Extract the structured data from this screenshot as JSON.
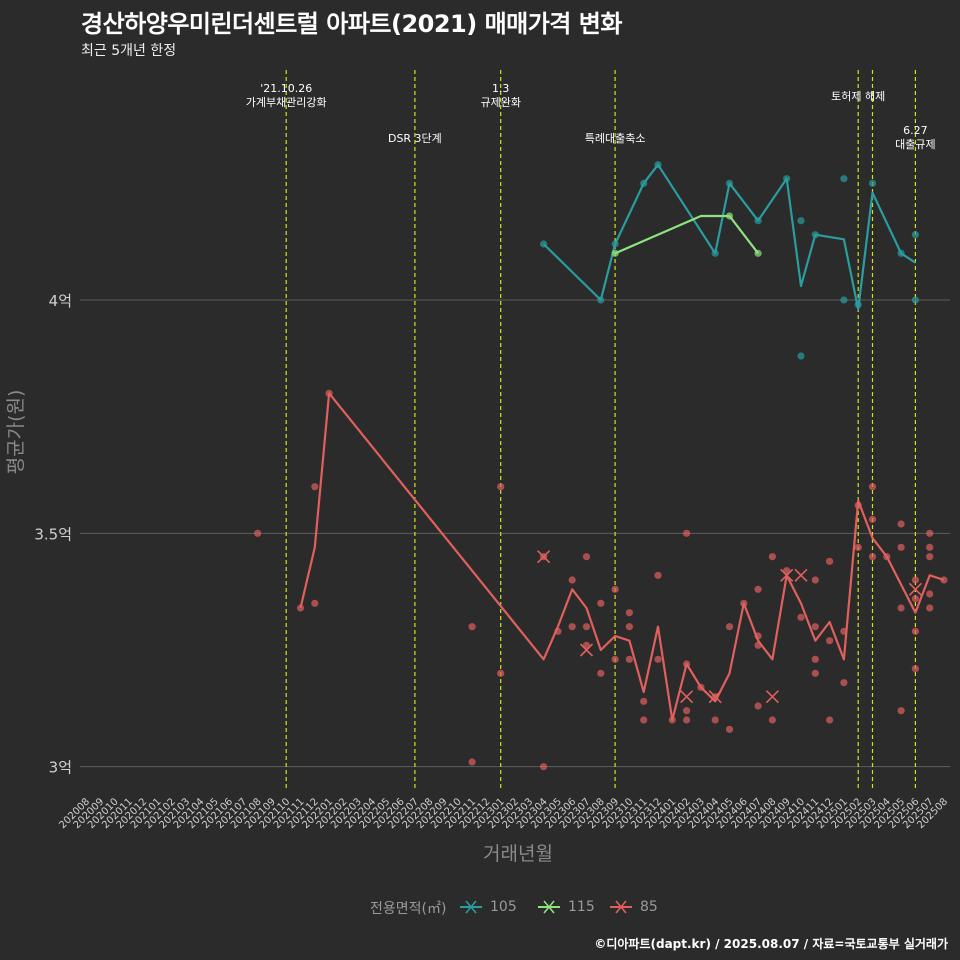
{
  "title": "경산하양우미린더센트럴 아파트(2021) 매매가격 변화",
  "subtitle": "최근 5개년 한정",
  "caption": "©디아파트(dapt.kr) / 2025.08.07 / 자료=국토교통부 실거래가",
  "colors": {
    "105": "#2a9d9f",
    "115": "#8ee37f",
    "85": "#e0605e",
    "background": "#2b2b2b",
    "grid": "#5a5a5a",
    "vline": "#d4e21a"
  },
  "chart_data": {
    "type": "line",
    "xlabel": "거래년월",
    "ylabel": "평균가(원)",
    "ylim": [
      2.95,
      4.51
    ],
    "y_ticks": [
      {
        "value": 3.0,
        "label": "3억"
      },
      {
        "value": 3.5,
        "label": "3.5억"
      },
      {
        "value": 4.0,
        "label": "4억"
      }
    ],
    "grid": true,
    "legend_position": "bottom",
    "legend_title": "전용면적(㎡)",
    "x_categories": [
      "202008",
      "202009",
      "202010",
      "202011",
      "202012",
      "202101",
      "202102",
      "202103",
      "202104",
      "202105",
      "202106",
      "202107",
      "202108",
      "202109",
      "202110",
      "202111",
      "202112",
      "202201",
      "202202",
      "202203",
      "202204",
      "202205",
      "202206",
      "202207",
      "202208",
      "202209",
      "202210",
      "202211",
      "202212",
      "202301",
      "202302",
      "202303",
      "202304",
      "202305",
      "202306",
      "202307",
      "202308",
      "202309",
      "202310",
      "202311",
      "202312",
      "202401",
      "202402",
      "202403",
      "202404",
      "202405",
      "202406",
      "202407",
      "202408",
      "202409",
      "202410",
      "202411",
      "202412",
      "202501",
      "202502",
      "202503",
      "202504",
      "202505",
      "202506",
      "202507",
      "202508"
    ],
    "events": [
      {
        "x": "202110",
        "label": "'21.10.26\n가계부채관리강화",
        "row": 0
      },
      {
        "x": "202207",
        "label": "DSR 3단계",
        "row": 2
      },
      {
        "x": "202301",
        "label": "1.3\n규제완화",
        "row": 0
      },
      {
        "x": "202309",
        "label": "특례대출축소",
        "row": 2
      },
      {
        "x": "202502",
        "label": "토허제 해제",
        "row": 1
      },
      {
        "x": "202503",
        "label": "",
        "row": 1
      },
      {
        "x": "202506",
        "label": "6.27\n대출규제",
        "row": 3
      }
    ],
    "series": [
      {
        "name": "105",
        "color": "#2a9d9f",
        "line": [
          [
            "202304",
            4.12
          ],
          [
            "202308",
            4.0
          ],
          [
            "202309",
            4.12
          ],
          [
            "202311",
            4.25
          ],
          [
            "202312",
            4.29
          ],
          [
            "202404",
            4.1
          ],
          [
            "202405",
            4.25
          ],
          [
            "202407",
            4.17
          ],
          [
            "202409",
            4.26
          ],
          [
            "202410",
            4.03
          ],
          [
            "202411",
            4.14
          ],
          [
            "202501",
            4.13
          ],
          [
            "202502",
            3.98
          ],
          [
            "202503",
            4.23
          ],
          [
            "202505",
            4.1
          ],
          [
            "202506",
            4.08
          ]
        ],
        "points": [
          [
            "202304",
            4.12
          ],
          [
            "202308",
            4.0
          ],
          [
            "202309",
            4.12
          ],
          [
            "202311",
            4.25
          ],
          [
            "202312",
            4.29
          ],
          [
            "202404",
            4.1
          ],
          [
            "202405",
            4.25
          ],
          [
            "202407",
            4.17
          ],
          [
            "202409",
            4.26
          ],
          [
            "202410",
            4.17
          ],
          [
            "202410",
            3.88
          ],
          [
            "202411",
            4.14
          ],
          [
            "202501",
            4.26
          ],
          [
            "202501",
            4.0
          ],
          [
            "202502",
            3.99
          ],
          [
            "202503",
            4.25
          ],
          [
            "202505",
            4.1
          ],
          [
            "202506",
            4.14
          ],
          [
            "202506",
            4.0
          ]
        ],
        "crosses": []
      },
      {
        "name": "115",
        "color": "#8ee37f",
        "line": [
          [
            "202309",
            4.1
          ],
          [
            "202403",
            4.18
          ],
          [
            "202405",
            4.18
          ],
          [
            "202407",
            4.1
          ]
        ],
        "points": [
          [
            "202309",
            4.1
          ],
          [
            "202405",
            4.18
          ],
          [
            "202407",
            4.1
          ]
        ],
        "crosses": []
      },
      {
        "name": "85",
        "color": "#e0605e",
        "line": [
          [
            "202111",
            3.34
          ],
          [
            "202112",
            3.47
          ],
          [
            "202201",
            3.8
          ],
          [
            "202304",
            3.23
          ],
          [
            "202305",
            3.3
          ],
          [
            "202306",
            3.38
          ],
          [
            "202307",
            3.34
          ],
          [
            "202308",
            3.25
          ],
          [
            "202309",
            3.28
          ],
          [
            "202310",
            3.27
          ],
          [
            "202311",
            3.16
          ],
          [
            "202312",
            3.3
          ],
          [
            "202401",
            3.1
          ],
          [
            "202402",
            3.22
          ],
          [
            "202403",
            3.17
          ],
          [
            "202404",
            3.14
          ],
          [
            "202405",
            3.2
          ],
          [
            "202406",
            3.35
          ],
          [
            "202407",
            3.27
          ],
          [
            "202408",
            3.23
          ],
          [
            "202409",
            3.41
          ],
          [
            "202410",
            3.35
          ],
          [
            "202411",
            3.27
          ],
          [
            "202412",
            3.31
          ],
          [
            "202501",
            3.23
          ],
          [
            "202502",
            3.57
          ],
          [
            "202503",
            3.49
          ],
          [
            "202504",
            3.45
          ],
          [
            "202505",
            3.39
          ],
          [
            "202506",
            3.33
          ],
          [
            "202507",
            3.41
          ],
          [
            "202508",
            3.4
          ]
        ],
        "points": [
          [
            "202108",
            3.5
          ],
          [
            "202111",
            3.34
          ],
          [
            "202112",
            3.35
          ],
          [
            "202112",
            3.6
          ],
          [
            "202201",
            3.8
          ],
          [
            "202211",
            3.01
          ],
          [
            "202211",
            3.3
          ],
          [
            "202301",
            3.6
          ],
          [
            "202301",
            3.2
          ],
          [
            "202304",
            3.45
          ],
          [
            "202304",
            3.0
          ],
          [
            "202305",
            3.29
          ],
          [
            "202306",
            3.4
          ],
          [
            "202306",
            3.3
          ],
          [
            "202307",
            3.45
          ],
          [
            "202307",
            3.3
          ],
          [
            "202307",
            3.26
          ],
          [
            "202308",
            3.35
          ],
          [
            "202308",
            3.2
          ],
          [
            "202309",
            3.38
          ],
          [
            "202309",
            3.23
          ],
          [
            "202310",
            3.33
          ],
          [
            "202310",
            3.3
          ],
          [
            "202310",
            3.23
          ],
          [
            "202311",
            3.14
          ],
          [
            "202311",
            3.1
          ],
          [
            "202312",
            3.41
          ],
          [
            "202312",
            3.23
          ],
          [
            "202401",
            3.1
          ],
          [
            "202402",
            3.5
          ],
          [
            "202402",
            3.22
          ],
          [
            "202402",
            3.12
          ],
          [
            "202402",
            3.1
          ],
          [
            "202403",
            3.17
          ],
          [
            "202404",
            3.15
          ],
          [
            "202404",
            3.1
          ],
          [
            "202405",
            3.3
          ],
          [
            "202405",
            3.08
          ],
          [
            "202406",
            3.35
          ],
          [
            "202407",
            3.38
          ],
          [
            "202407",
            3.28
          ],
          [
            "202407",
            3.26
          ],
          [
            "202407",
            3.13
          ],
          [
            "202408",
            3.45
          ],
          [
            "202408",
            3.1
          ],
          [
            "202409",
            3.42
          ],
          [
            "202410",
            3.32
          ],
          [
            "202411",
            3.4
          ],
          [
            "202411",
            3.3
          ],
          [
            "202411",
            3.2
          ],
          [
            "202411",
            3.23
          ],
          [
            "202412",
            3.44
          ],
          [
            "202412",
            3.27
          ],
          [
            "202412",
            3.1
          ],
          [
            "202501",
            3.29
          ],
          [
            "202501",
            3.18
          ],
          [
            "202502",
            3.56
          ],
          [
            "202502",
            3.47
          ],
          [
            "202503",
            3.6
          ],
          [
            "202503",
            3.53
          ],
          [
            "202503",
            3.45
          ],
          [
            "202504",
            3.45
          ],
          [
            "202505",
            3.52
          ],
          [
            "202505",
            3.47
          ],
          [
            "202505",
            3.34
          ],
          [
            "202505",
            3.12
          ],
          [
            "202506",
            3.4
          ],
          [
            "202506",
            3.36
          ],
          [
            "202506",
            3.29
          ],
          [
            "202506",
            3.21
          ],
          [
            "202507",
            3.5
          ],
          [
            "202507",
            3.47
          ],
          [
            "202507",
            3.45
          ],
          [
            "202507",
            3.37
          ],
          [
            "202507",
            3.34
          ],
          [
            "202508",
            3.4
          ]
        ],
        "crosses": [
          [
            "202304",
            3.45
          ],
          [
            "202307",
            3.25
          ],
          [
            "202402",
            3.15
          ],
          [
            "202404",
            3.15
          ],
          [
            "202408",
            3.15
          ],
          [
            "202409",
            3.41
          ],
          [
            "202410",
            3.41
          ],
          [
            "202506",
            3.38
          ]
        ]
      }
    ]
  }
}
